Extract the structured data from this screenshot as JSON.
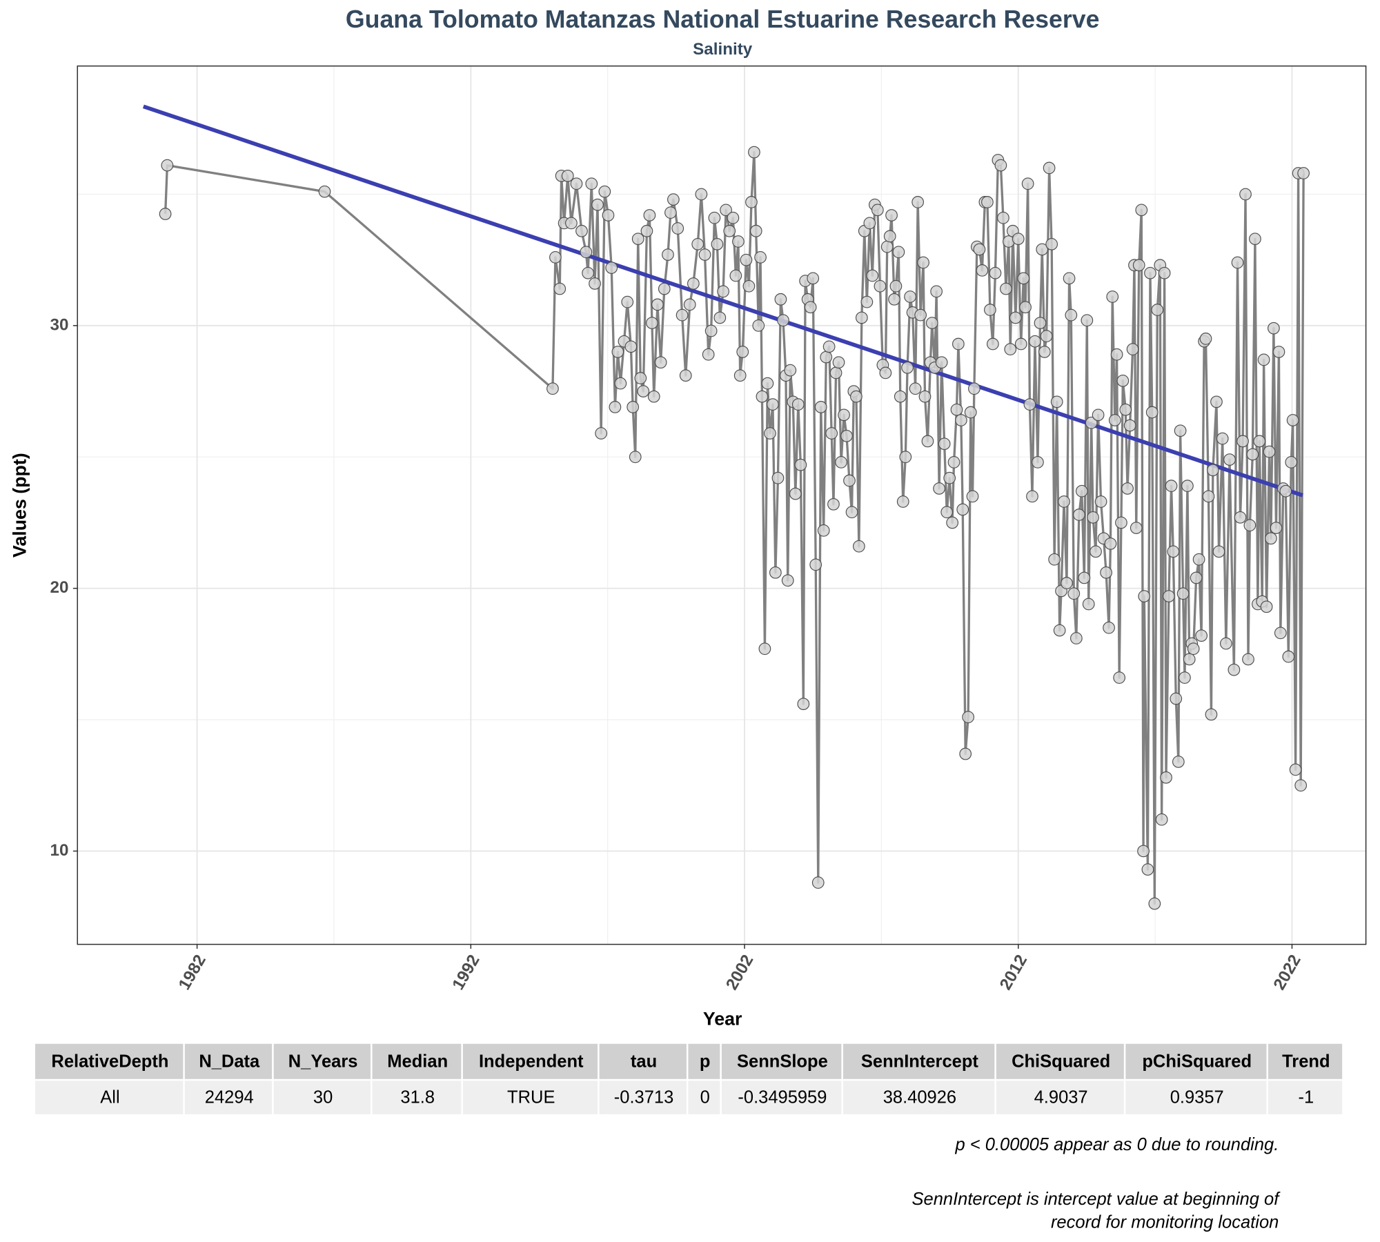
{
  "chart_data": {
    "type": "line",
    "title": "Guana Tolomato Matanzas National Estuarine Research Reserve",
    "subtitle": "Salinity",
    "xlabel": "Year",
    "ylabel": "Values (ppt)",
    "x": [
      1980.84,
      1980.91,
      1986.66,
      1994.99,
      1995.09,
      1995.25,
      1995.31,
      1995.41,
      1995.54,
      1995.67,
      1995.86,
      1996.05,
      1996.21,
      1996.28,
      1996.41,
      1996.53,
      1996.63,
      1996.76,
      1996.89,
      1997.02,
      1997.14,
      1997.27,
      1997.37,
      1997.47,
      1997.6,
      1997.72,
      1997.85,
      1997.92,
      1998.01,
      1998.11,
      1998.2,
      1998.3,
      1998.43,
      1998.53,
      1998.62,
      1998.69,
      1998.82,
      1998.94,
      1999.07,
      1999.2,
      1999.3,
      1999.4,
      1999.56,
      1999.72,
      1999.85,
      2000.0,
      2000.13,
      2000.29,
      2000.42,
      2000.55,
      2000.68,
      2000.78,
      2000.9,
      2001.0,
      2001.1,
      2001.22,
      2001.32,
      2001.45,
      2001.58,
      2001.68,
      2001.77,
      2001.84,
      2001.93,
      2002.06,
      2002.16,
      2002.25,
      2002.35,
      2002.42,
      2002.51,
      2002.58,
      2002.64,
      2002.74,
      2002.84,
      2002.93,
      2003.03,
      2003.13,
      2003.22,
      2003.32,
      2003.41,
      2003.51,
      2003.58,
      2003.67,
      2003.77,
      2003.86,
      2003.96,
      2004.05,
      2004.15,
      2004.22,
      2004.31,
      2004.41,
      2004.5,
      2004.6,
      2004.69,
      2004.79,
      2004.89,
      2004.98,
      2005.09,
      2005.18,
      2005.25,
      2005.34,
      2005.44,
      2005.53,
      2005.63,
      2005.73,
      2005.83,
      2005.92,
      2005.99,
      2006.08,
      2006.18,
      2006.28,
      2006.38,
      2006.47,
      2006.57,
      2006.67,
      2006.76,
      2006.86,
      2006.95,
      2007.05,
      2007.15,
      2007.21,
      2007.31,
      2007.37,
      2007.47,
      2007.53,
      2007.63,
      2007.69,
      2007.79,
      2007.88,
      2007.95,
      2008.05,
      2008.14,
      2008.24,
      2008.33,
      2008.43,
      2008.53,
      2008.59,
      2008.69,
      2008.79,
      2008.85,
      2008.95,
      2009.01,
      2009.11,
      2009.2,
      2009.3,
      2009.39,
      2009.49,
      2009.59,
      2009.65,
      2009.75,
      2009.81,
      2009.91,
      2009.97,
      2010.07,
      2010.17,
      2010.26,
      2010.33,
      2010.39,
      2010.49,
      2010.58,
      2010.68,
      2010.78,
      2010.87,
      2010.97,
      2011.07,
      2011.16,
      2011.26,
      2011.36,
      2011.45,
      2011.55,
      2011.65,
      2011.71,
      2011.8,
      2011.9,
      2012.0,
      2012.1,
      2012.19,
      2012.26,
      2012.35,
      2012.42,
      2012.51,
      2012.61,
      2012.71,
      2012.8,
      2012.87,
      2012.96,
      2013.03,
      2013.13,
      2013.22,
      2013.32,
      2013.41,
      2013.51,
      2013.57,
      2013.67,
      2013.77,
      2013.86,
      2013.93,
      2014.03,
      2014.12,
      2014.22,
      2014.32,
      2014.41,
      2014.51,
      2014.57,
      2014.67,
      2014.73,
      2014.83,
      2014.92,
      2015.02,
      2015.12,
      2015.21,
      2015.31,
      2015.37,
      2015.44,
      2015.53,
      2015.6,
      2015.69,
      2015.76,
      2015.82,
      2015.92,
      2015.99,
      2016.08,
      2016.18,
      2016.24,
      2016.31,
      2016.41,
      2016.5,
      2016.57,
      2016.6,
      2016.73,
      2016.82,
      2016.89,
      2016.98,
      2017.08,
      2017.18,
      2017.24,
      2017.34,
      2017.4,
      2017.5,
      2017.59,
      2017.66,
      2017.76,
      2017.85,
      2017.92,
      2018.02,
      2018.08,
      2018.18,
      2018.25,
      2018.34,
      2018.4,
      2018.5,
      2018.6,
      2018.69,
      2018.79,
      2018.85,
      2018.95,
      2019.05,
      2019.11,
      2019.24,
      2019.33,
      2019.46,
      2019.59,
      2019.72,
      2019.88,
      2020.01,
      2020.11,
      2020.2,
      2020.3,
      2020.4,
      2020.46,
      2020.56,
      2020.65,
      2020.75,
      2020.81,
      2020.91,
      2020.97,
      2021.07,
      2021.17,
      2021.23,
      2021.33,
      2021.42,
      2021.52,
      2021.58,
      2021.68,
      2021.77,
      2021.87,
      2021.97,
      2022.03,
      2022.13,
      2022.23,
      2022.32,
      2022.42
    ],
    "series": [
      {
        "color": "#808080",
        "marker_fill": "#d3d3d3",
        "marker_stroke": "#4d4d4d",
        "values": [
          34.25,
          36.1,
          35.1,
          27.6,
          32.6,
          31.4,
          35.7,
          33.9,
          35.7,
          33.9,
          35.4,
          33.6,
          32.8,
          32.0,
          35.4,
          31.6,
          34.6,
          25.9,
          35.1,
          34.2,
          32.2,
          26.9,
          29.0,
          27.8,
          29.4,
          30.9,
          29.2,
          26.9,
          25.0,
          33.3,
          28.0,
          27.5,
          33.6,
          34.2,
          30.1,
          27.3,
          30.8,
          28.6,
          31.4,
          32.7,
          34.3,
          34.8,
          33.7,
          30.4,
          28.1,
          30.8,
          31.6,
          33.1,
          35.0,
          32.7,
          28.9,
          29.8,
          34.1,
          33.1,
          30.3,
          31.3,
          34.4,
          33.6,
          34.1,
          31.9,
          33.2,
          28.1,
          29.0,
          32.5,
          31.5,
          34.7,
          36.6,
          33.6,
          30.0,
          32.6,
          27.3,
          17.7,
          27.8,
          25.9,
          27.0,
          20.6,
          24.2,
          31.0,
          30.2,
          28.1,
          20.3,
          28.3,
          27.1,
          23.6,
          27.0,
          24.7,
          15.6,
          31.7,
          31.0,
          30.7,
          31.8,
          20.9,
          8.8,
          26.9,
          22.2,
          28.8,
          29.2,
          25.9,
          23.2,
          28.2,
          28.6,
          24.8,
          26.6,
          25.8,
          24.1,
          22.9,
          27.5,
          27.3,
          21.6,
          30.3,
          33.6,
          30.9,
          33.9,
          31.9,
          34.6,
          34.4,
          31.5,
          28.5,
          28.2,
          33.0,
          33.4,
          34.2,
          31.0,
          31.5,
          32.8,
          27.3,
          23.3,
          25.0,
          28.4,
          31.1,
          30.5,
          27.6,
          34.7,
          30.4,
          32.4,
          27.3,
          25.6,
          28.6,
          30.1,
          28.4,
          31.3,
          23.8,
          28.6,
          25.5,
          22.9,
          24.2,
          22.5,
          24.8,
          26.8,
          29.3,
          26.4,
          23.0,
          13.7,
          15.1,
          26.7,
          23.5,
          27.6,
          33.0,
          32.9,
          32.1,
          34.7,
          34.7,
          30.6,
          29.3,
          32.0,
          36.3,
          36.1,
          34.1,
          31.4,
          33.2,
          29.1,
          33.6,
          30.3,
          33.3,
          29.3,
          31.8,
          30.7,
          35.4,
          27.0,
          23.5,
          29.4,
          24.8,
          30.1,
          32.9,
          29.0,
          29.6,
          36.0,
          33.1,
          21.1,
          27.1,
          18.4,
          19.9,
          23.3,
          20.2,
          31.8,
          30.4,
          19.8,
          18.1,
          22.8,
          23.7,
          20.4,
          30.2,
          19.4,
          26.3,
          22.7,
          21.4,
          26.6,
          23.3,
          21.9,
          20.6,
          18.5,
          21.7,
          31.1,
          26.4,
          28.9,
          16.6,
          22.5,
          27.9,
          26.8,
          23.8,
          26.2,
          29.1,
          32.3,
          22.3,
          32.3,
          34.4,
          10.0,
          19.7,
          9.3,
          32.0,
          26.7,
          8.0,
          30.6,
          32.3,
          11.2,
          32.0,
          12.8,
          19.7,
          23.9,
          21.4,
          15.8,
          13.4,
          26.0,
          19.8,
          16.6,
          23.9,
          17.3,
          17.9,
          17.7,
          20.4,
          21.1,
          18.2,
          29.4,
          29.5,
          23.5,
          15.2,
          24.5,
          27.1,
          21.4,
          25.7,
          17.9,
          24.9,
          16.9,
          32.4,
          22.7,
          25.6,
          35.0,
          17.3,
          22.4,
          25.1,
          33.3,
          19.4,
          25.6,
          19.5,
          28.7,
          19.3,
          25.2,
          21.9,
          29.9,
          22.3,
          29.0,
          18.3,
          23.8,
          23.7,
          17.4,
          24.8,
          26.4,
          13.1,
          35.8,
          12.5,
          35.8
        ]
      }
    ],
    "trend": {
      "x": [
        1980.04,
        2022.39
      ],
      "values": [
        38.34,
        23.54
      ],
      "color": "#3b3fb0"
    },
    "xlim": [
      1977.63,
      2024.7
    ],
    "ylim": [
      6.45,
      39.88
    ],
    "xticks": [
      1982,
      1992,
      2002,
      2012,
      2022
    ],
    "yticks": [
      10,
      20,
      30
    ],
    "xminor": [
      1987,
      1997,
      2007,
      2017
    ],
    "yminor": [
      15,
      25,
      35
    ],
    "grid": true
  },
  "table": {
    "columns": [
      "RelativeDepth",
      "N_Data",
      "N_Years",
      "Median",
      "Independent",
      "tau",
      "p",
      "SennSlope",
      "SennIntercept",
      "ChiSquared",
      "pChiSquared",
      "Trend"
    ],
    "rows": [
      [
        "All",
        24294,
        30,
        31.8,
        "TRUE",
        -0.3713,
        0,
        -0.3495959,
        38.40926,
        4.9037,
        0.9357,
        -1
      ]
    ]
  },
  "notes": [
    "p < 0.00005 appear as 0 due to rounding.",
    "SennIntercept is intercept value at beginning of record for monitoring location"
  ]
}
